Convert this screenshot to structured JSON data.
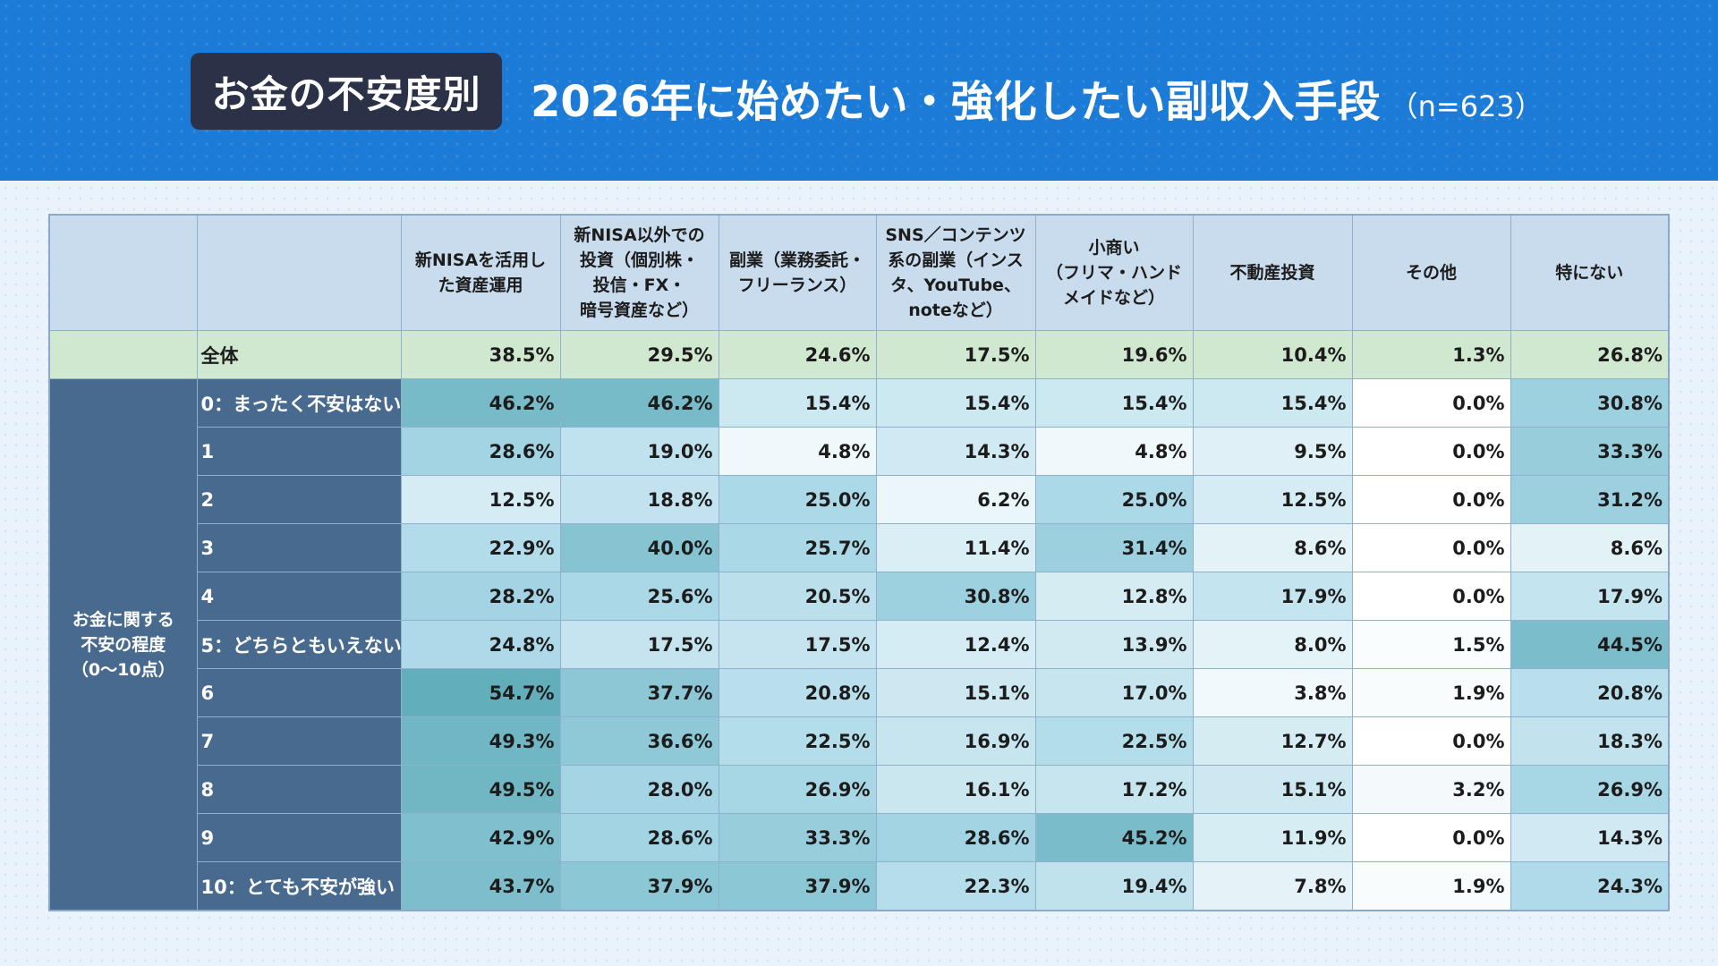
{
  "header": {
    "badge": "お金の不安度別",
    "title": "2026年に始めたい・強化したい副収入手段",
    "sample": "（n=623）"
  },
  "colors": {
    "header_bg": "#1b7bd6",
    "badge_bg": "#2b3247",
    "group_bg": "#476a8e",
    "column_header_bg": "#c9dcee",
    "total_row_bg": "#cfe8cf",
    "heat_low": "#ffffff",
    "heat_high": "#62aebb"
  },
  "chart_data": {
    "type": "heatmap",
    "title": "2026年に始めたい・強化したい副収入手段",
    "group_label": "お金に関する\n不安の程度\n（0〜10点）",
    "columns": [
      "新NISAを活用し\nた資産運用",
      "新NISA以外での\n投資（個別株・\n投信・FX・\n暗号資産など）",
      "副業（業務委託・\nフリーランス）",
      "SNS／コンテンツ\n系の副業（インス\nタ、YouTube、\nnoteなど）",
      "小商い\n（フリマ・ハンド\nメイドなど）",
      "不動産投資",
      "その他",
      "特にない"
    ],
    "total": {
      "label": "全体",
      "values": [
        "38.5%",
        "29.5%",
        "24.6%",
        "17.5%",
        "19.6%",
        "10.4%",
        "1.3%",
        "26.8%"
      ]
    },
    "rows": [
      {
        "label": "0：まったく不安はない",
        "values": [
          "46.2%",
          "46.2%",
          "15.4%",
          "15.4%",
          "15.4%",
          "15.4%",
          "0.0%",
          "30.8%"
        ]
      },
      {
        "label": "1",
        "values": [
          "28.6%",
          "19.0%",
          "4.8%",
          "14.3%",
          "4.8%",
          "9.5%",
          "0.0%",
          "33.3%"
        ]
      },
      {
        "label": "2",
        "values": [
          "12.5%",
          "18.8%",
          "25.0%",
          "6.2%",
          "25.0%",
          "12.5%",
          "0.0%",
          "31.2%"
        ]
      },
      {
        "label": "3",
        "values": [
          "22.9%",
          "40.0%",
          "25.7%",
          "11.4%",
          "31.4%",
          "8.6%",
          "0.0%",
          "8.6%"
        ]
      },
      {
        "label": "4",
        "values": [
          "28.2%",
          "25.6%",
          "20.5%",
          "30.8%",
          "12.8%",
          "17.9%",
          "0.0%",
          "17.9%"
        ]
      },
      {
        "label": "5：どちらともいえない",
        "values": [
          "24.8%",
          "17.5%",
          "17.5%",
          "12.4%",
          "13.9%",
          "8.0%",
          "1.5%",
          "44.5%"
        ]
      },
      {
        "label": "6",
        "values": [
          "54.7%",
          "37.7%",
          "20.8%",
          "15.1%",
          "17.0%",
          "3.8%",
          "1.9%",
          "20.8%"
        ]
      },
      {
        "label": "7",
        "values": [
          "49.3%",
          "36.6%",
          "22.5%",
          "16.9%",
          "22.5%",
          "12.7%",
          "0.0%",
          "18.3%"
        ]
      },
      {
        "label": "8",
        "values": [
          "49.5%",
          "28.0%",
          "26.9%",
          "16.1%",
          "17.2%",
          "15.1%",
          "3.2%",
          "26.9%"
        ]
      },
      {
        "label": "9",
        "values": [
          "42.9%",
          "28.6%",
          "33.3%",
          "28.6%",
          "45.2%",
          "11.9%",
          "0.0%",
          "14.3%"
        ]
      },
      {
        "label": "10：とても不安が強い",
        "values": [
          "43.7%",
          "37.9%",
          "37.9%",
          "22.3%",
          "19.4%",
          "7.8%",
          "1.9%",
          "24.3%"
        ]
      }
    ]
  }
}
